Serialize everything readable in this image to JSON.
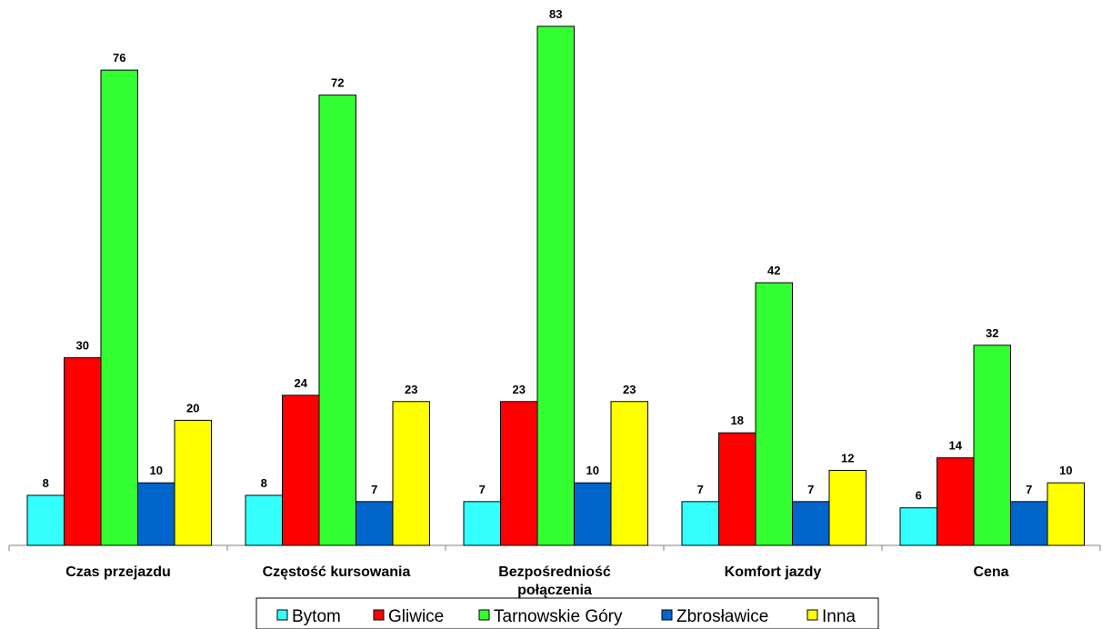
{
  "chart_data": {
    "type": "bar",
    "title": "",
    "xlabel": "",
    "ylabel": "",
    "ylim": [
      0,
      85
    ],
    "grid": false,
    "legend_position": "bottom",
    "categories": [
      [
        "Czas przejazdu"
      ],
      [
        "Częstość kursowania"
      ],
      [
        "Bezpośredniość",
        "połączenia"
      ],
      [
        "Komfort jazdy"
      ],
      [
        "Cena"
      ]
    ],
    "series": [
      {
        "name": "Bytom",
        "color": "#33ffff",
        "values": [
          8,
          8,
          7,
          7,
          6
        ]
      },
      {
        "name": "Gliwice",
        "color": "#ff0000",
        "values": [
          30,
          24,
          23,
          18,
          14
        ]
      },
      {
        "name": "Tarnowskie Góry",
        "color": "#33ff33",
        "values": [
          76,
          72,
          83,
          42,
          32
        ]
      },
      {
        "name": "Zbrosławice",
        "color": "#0066cc",
        "values": [
          10,
          7,
          10,
          7,
          7
        ]
      },
      {
        "name": "Inna",
        "color": "#ffff00",
        "values": [
          20,
          23,
          23,
          12,
          10
        ]
      }
    ]
  }
}
